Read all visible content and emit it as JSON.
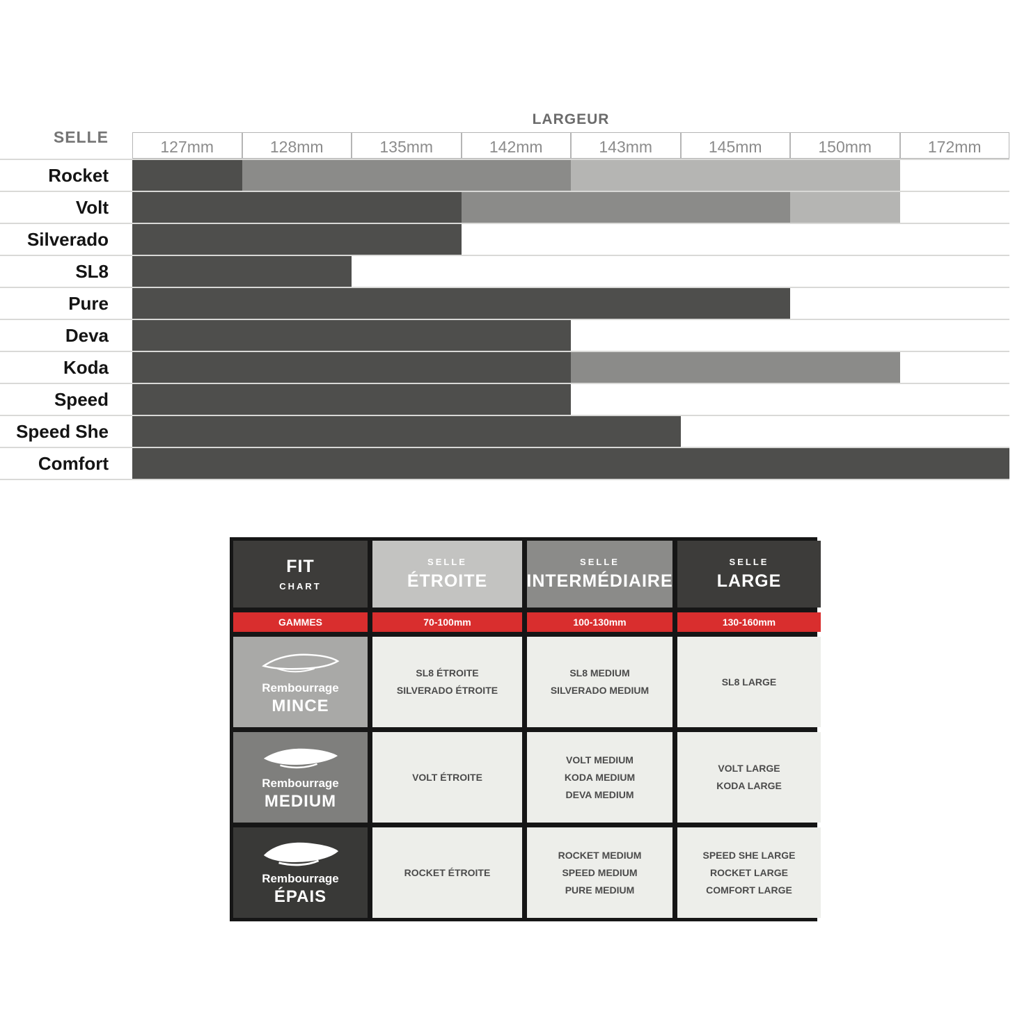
{
  "width_chart": {
    "title": "LARGEUR",
    "row_header": "SELLE",
    "columns": [
      "127mm",
      "128mm",
      "135mm",
      "142mm",
      "143mm",
      "145mm",
      "150mm",
      "172mm"
    ],
    "shade_colors": {
      "dark": "#4e4e4c",
      "medium": "#8b8b89",
      "light": "#b5b5b3"
    },
    "rows": [
      {
        "label": "Rocket",
        "segments": [
          {
            "start": 0,
            "end": 1,
            "shade": "dark"
          },
          {
            "start": 1,
            "end": 4,
            "shade": "medium"
          },
          {
            "start": 4,
            "end": 7,
            "shade": "light"
          }
        ]
      },
      {
        "label": "Volt",
        "segments": [
          {
            "start": 0,
            "end": 3,
            "shade": "dark"
          },
          {
            "start": 3,
            "end": 6,
            "shade": "medium"
          },
          {
            "start": 6,
            "end": 7,
            "shade": "light"
          }
        ]
      },
      {
        "label": "Silverado",
        "segments": [
          {
            "start": 0,
            "end": 3,
            "shade": "dark"
          }
        ]
      },
      {
        "label": "SL8",
        "segments": [
          {
            "start": 0,
            "end": 2,
            "shade": "dark"
          }
        ]
      },
      {
        "label": "Pure",
        "segments": [
          {
            "start": 0,
            "end": 6,
            "shade": "dark"
          }
        ]
      },
      {
        "label": "Deva",
        "segments": [
          {
            "start": 0,
            "end": 4,
            "shade": "dark"
          }
        ]
      },
      {
        "label": "Koda",
        "segments": [
          {
            "start": 0,
            "end": 4,
            "shade": "dark"
          },
          {
            "start": 4,
            "end": 7,
            "shade": "medium"
          }
        ]
      },
      {
        "label": "Speed",
        "segments": [
          {
            "start": 0,
            "end": 4,
            "shade": "dark"
          }
        ]
      },
      {
        "label": "Speed She",
        "segments": [
          {
            "start": 0,
            "end": 5,
            "shade": "dark"
          }
        ]
      },
      {
        "label": "Comfort",
        "segments": [
          {
            "start": 0,
            "end": 8,
            "shade": "dark"
          }
        ]
      }
    ]
  },
  "fit_chart": {
    "title_line1": "FIT",
    "title_line2": "CHART",
    "columns": [
      {
        "top": "SELLE",
        "main": "ÉTROITE"
      },
      {
        "top": "SELLE",
        "main": "INTERMÉDIAIRE"
      },
      {
        "top": "SELLE",
        "main": "LARGE"
      }
    ],
    "ranges_label": "GAMMES",
    "ranges": [
      "70-100mm",
      "100-130mm",
      "130-160mm"
    ],
    "rows": [
      {
        "label": "Rembourrage",
        "name": "MINCE",
        "etroite": [
          "SL8 ÉTROITE",
          "SILVERADO ÉTROITE"
        ],
        "intermediaire": [
          "SL8 MEDIUM",
          "SILVERADO MEDIUM"
        ],
        "large": [
          "SL8 LARGE"
        ]
      },
      {
        "label": "Rembourrage",
        "name": "MEDIUM",
        "etroite": [
          "VOLT ÉTROITE"
        ],
        "intermediaire": [
          "VOLT MEDIUM",
          "KODA MEDIUM",
          "DEVA MEDIUM"
        ],
        "large": [
          "VOLT LARGE",
          "KODA LARGE"
        ]
      },
      {
        "label": "Rembourrage",
        "name": "ÉPAIS",
        "etroite": [
          "ROCKET ÉTROITE"
        ],
        "intermediaire": [
          "ROCKET MEDIUM",
          "SPEED MEDIUM",
          "PURE MEDIUM"
        ],
        "large": [
          "SPEED SHE LARGE",
          "ROCKET LARGE",
          "COMFORT LARGE"
        ]
      }
    ],
    "colors": {
      "accent_red": "#d92e2e",
      "header_dark": "#3d3c3a",
      "header_light_gray": "#c3c3c1",
      "header_mid_gray": "#8b8b89",
      "cell_bg": "#edeeea",
      "row_mince_bg": "#a9a9a7",
      "row_medium_bg": "#7f7f7d",
      "row_epais_bg": "#393937"
    }
  },
  "chart_data": [
    {
      "type": "bar",
      "orientation": "horizontal",
      "title": "LARGEUR",
      "ylabel": "SELLE",
      "x_tick_labels": [
        "127mm",
        "128mm",
        "135mm",
        "142mm",
        "143mm",
        "145mm",
        "150mm",
        "172mm"
      ],
      "legend_position": "none",
      "grid": true,
      "rows": [
        {
          "name": "Rocket",
          "segments": [
            {
              "widths": [
                "127mm"
              ],
              "shade": "dark"
            },
            {
              "widths": [
                "128mm",
                "135mm",
                "142mm"
              ],
              "shade": "medium"
            },
            {
              "widths": [
                "143mm",
                "145mm",
                "150mm"
              ],
              "shade": "light"
            }
          ]
        },
        {
          "name": "Volt",
          "segments": [
            {
              "widths": [
                "127mm",
                "128mm",
                "135mm"
              ],
              "shade": "dark"
            },
            {
              "widths": [
                "142mm",
                "143mm",
                "145mm"
              ],
              "shade": "medium"
            },
            {
              "widths": [
                "150mm"
              ],
              "shade": "light"
            }
          ]
        },
        {
          "name": "Silverado",
          "segments": [
            {
              "widths": [
                "127mm",
                "128mm",
                "135mm"
              ],
              "shade": "dark"
            }
          ]
        },
        {
          "name": "SL8",
          "segments": [
            {
              "widths": [
                "127mm",
                "128mm"
              ],
              "shade": "dark"
            }
          ]
        },
        {
          "name": "Pure",
          "segments": [
            {
              "widths": [
                "127mm",
                "128mm",
                "135mm",
                "142mm",
                "143mm",
                "145mm"
              ],
              "shade": "dark"
            }
          ]
        },
        {
          "name": "Deva",
          "segments": [
            {
              "widths": [
                "127mm",
                "128mm",
                "135mm",
                "142mm"
              ],
              "shade": "dark"
            }
          ]
        },
        {
          "name": "Koda",
          "segments": [
            {
              "widths": [
                "127mm",
                "128mm",
                "135mm",
                "142mm"
              ],
              "shade": "dark"
            },
            {
              "widths": [
                "143mm",
                "145mm",
                "150mm"
              ],
              "shade": "medium"
            }
          ]
        },
        {
          "name": "Speed",
          "segments": [
            {
              "widths": [
                "127mm",
                "128mm",
                "135mm",
                "142mm"
              ],
              "shade": "dark"
            }
          ]
        },
        {
          "name": "Speed She",
          "segments": [
            {
              "widths": [
                "127mm",
                "128mm",
                "135mm",
                "142mm",
                "143mm"
              ],
              "shade": "dark"
            }
          ]
        },
        {
          "name": "Comfort",
          "segments": [
            {
              "widths": [
                "127mm",
                "128mm",
                "135mm",
                "142mm",
                "143mm",
                "145mm",
                "150mm",
                "172mm"
              ],
              "shade": "dark"
            }
          ]
        }
      ]
    },
    {
      "type": "table",
      "title": "FIT CHART",
      "column_headers": [
        "GAMMES",
        "SELLE ÉTROITE 70-100mm",
        "SELLE INTERMÉDIAIRE 100-130mm",
        "SELLE LARGE 130-160mm"
      ],
      "rows": [
        [
          "Rembourrage MINCE",
          "SL8 ÉTROITE; SILVERADO ÉTROITE",
          "SL8 MEDIUM; SILVERADO MEDIUM",
          "SL8 LARGE"
        ],
        [
          "Rembourrage MEDIUM",
          "VOLT ÉTROITE",
          "VOLT MEDIUM; KODA MEDIUM; DEVA MEDIUM",
          "VOLT LARGE; KODA LARGE"
        ],
        [
          "Rembourrage ÉPAIS",
          "ROCKET ÉTROITE",
          "ROCKET MEDIUM; SPEED MEDIUM; PURE MEDIUM",
          "SPEED SHE LARGE; ROCKET LARGE; COMFORT LARGE"
        ]
      ]
    }
  ]
}
